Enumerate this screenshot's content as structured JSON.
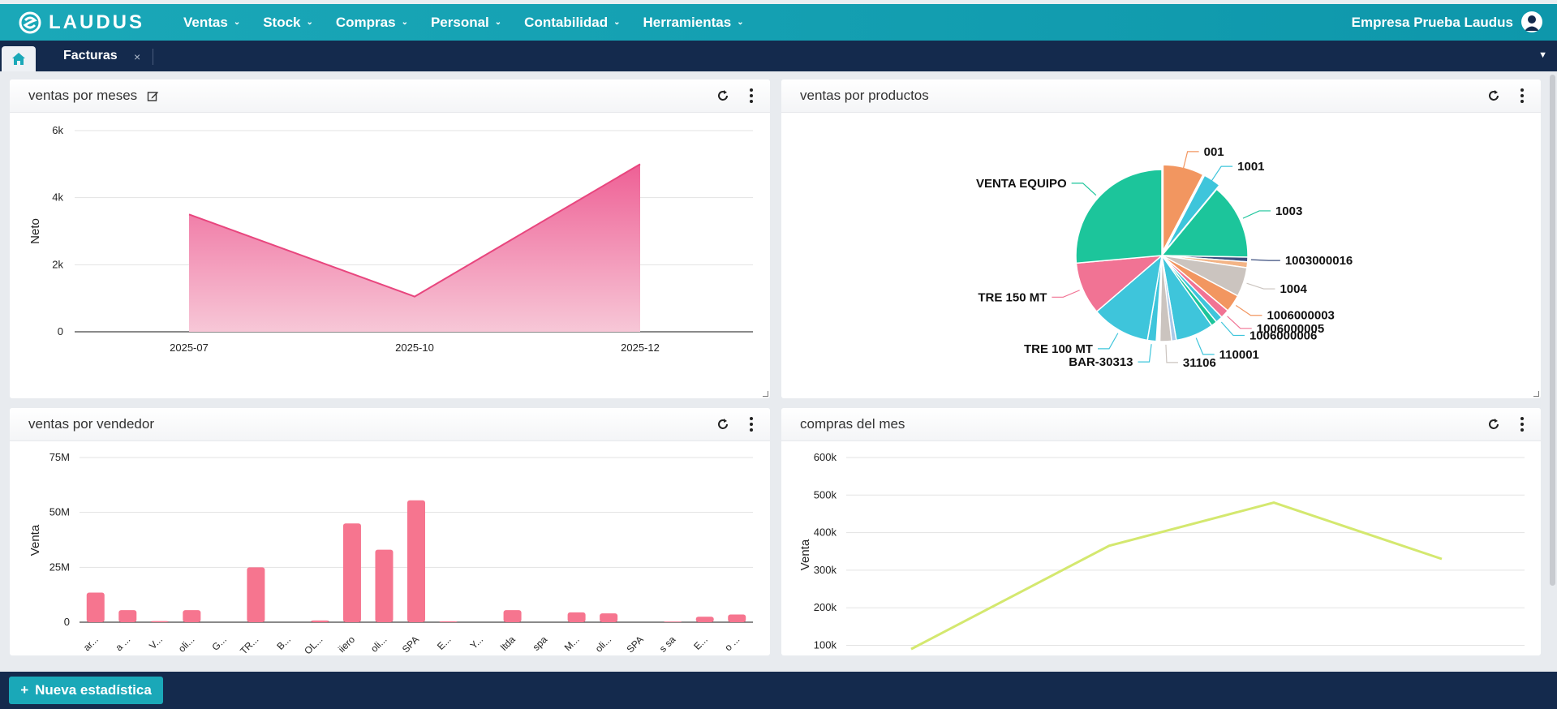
{
  "app": {
    "logo_text": "LAUDUS",
    "company": "Empresa Prueba Laudus"
  },
  "menu": [
    {
      "label": "Ventas"
    },
    {
      "label": "Stock"
    },
    {
      "label": "Compras"
    },
    {
      "label": "Personal"
    },
    {
      "label": "Contabilidad"
    },
    {
      "label": "Herramientas"
    }
  ],
  "tabs": {
    "active_label": "Facturas",
    "close_symbol": "×"
  },
  "panels": {
    "ventas_meses": {
      "title": "ventas por meses"
    },
    "ventas_productos": {
      "title": "ventas por productos"
    },
    "ventas_vendedor": {
      "title": "ventas por vendedor"
    },
    "compras_mes": {
      "title": "compras del mes"
    }
  },
  "bottom": {
    "new_button": "Nueva estadística"
  },
  "colors": {
    "brand": "#1aa8b8",
    "navy": "#142a4d",
    "pink": "#f6758f",
    "lime": "#d4e86f"
  },
  "chart_data": [
    {
      "id": "ventas_meses",
      "type": "area",
      "categories": [
        "2025-07",
        "2025-10",
        "2025-12"
      ],
      "values": [
        3500,
        1050,
        5000
      ],
      "ylabel": "Neto",
      "yticks": [
        "0",
        "2k",
        "4k",
        "6k"
      ],
      "ylim": [
        0,
        6000
      ],
      "grid": true
    },
    {
      "id": "ventas_productos",
      "type": "pie",
      "slices": [
        {
          "label": "001",
          "value": 7,
          "color": "#f29660",
          "exploded": true
        },
        {
          "label": "1001",
          "value": 3,
          "color": "#3ec5db",
          "exploded": true
        },
        {
          "label": "1003",
          "value": 13,
          "color": "#1cc59b"
        },
        {
          "label": "1003000016",
          "value": 0.8,
          "color": "#3b4e7e"
        },
        {
          "label": "",
          "value": 1,
          "color": "#f3b486"
        },
        {
          "label": "1004",
          "value": 5,
          "color": "#cbc4bf"
        },
        {
          "label": "1006000003",
          "value": 3,
          "color": "#f29660"
        },
        {
          "label": "1006000005",
          "value": 1.5,
          "color": "#f17394"
        },
        {
          "label": "1006000006",
          "value": 1.2,
          "color": "#3ec5db"
        },
        {
          "label": "",
          "value": 1,
          "color": "#1cc59b"
        },
        {
          "label": "110001",
          "value": 6.5,
          "color": "#3ec5db"
        },
        {
          "label": "",
          "value": 0.8,
          "color": "#a9c9e8"
        },
        {
          "label": "31106",
          "value": 2,
          "color": "#cbc4bf"
        },
        {
          "label": "",
          "value": 0.6,
          "color": "#ffffff"
        },
        {
          "label": "BAR-30313",
          "value": 1.5,
          "color": "#3ec5db"
        },
        {
          "label": "TRE 100 MT",
          "value": 10,
          "color": "#3ec5db"
        },
        {
          "label": "TRE 150 MT",
          "value": 9,
          "color": "#f17394"
        },
        {
          "label": "VENTA EQUIPO",
          "value": 24,
          "color": "#1cc59b"
        }
      ]
    },
    {
      "id": "ventas_vendedor",
      "type": "bar",
      "categories": [
        "ar...",
        "a ...",
        "V...",
        "oli...",
        "G...",
        "TR...",
        "B...",
        "OL...",
        "iiero",
        "oli...",
        "SPA",
        "E...",
        "Y...",
        "ltda",
        "spa",
        "M...",
        "oli...",
        "SPA",
        "s sa",
        "E...",
        "o ..."
      ],
      "values": [
        13.5,
        5.5,
        0.5,
        5.5,
        0,
        25,
        0,
        0.8,
        45,
        33,
        55.5,
        0.4,
        0,
        5.5,
        0,
        4.5,
        4,
        0,
        0.3,
        2.5,
        3.5
      ],
      "ylabel": "Venta",
      "yticks": [
        "0",
        "25M",
        "50M",
        "75M"
      ],
      "ylim": [
        0,
        75
      ],
      "grid": true
    },
    {
      "id": "compras_mes",
      "type": "line",
      "values": [
        90000,
        365000,
        480000,
        330000
      ],
      "ylabel": "Venta",
      "yticks": [
        "100k",
        "200k",
        "300k",
        "400k",
        "500k",
        "600k"
      ],
      "ylim": [
        0,
        600000
      ],
      "grid": true
    }
  ]
}
